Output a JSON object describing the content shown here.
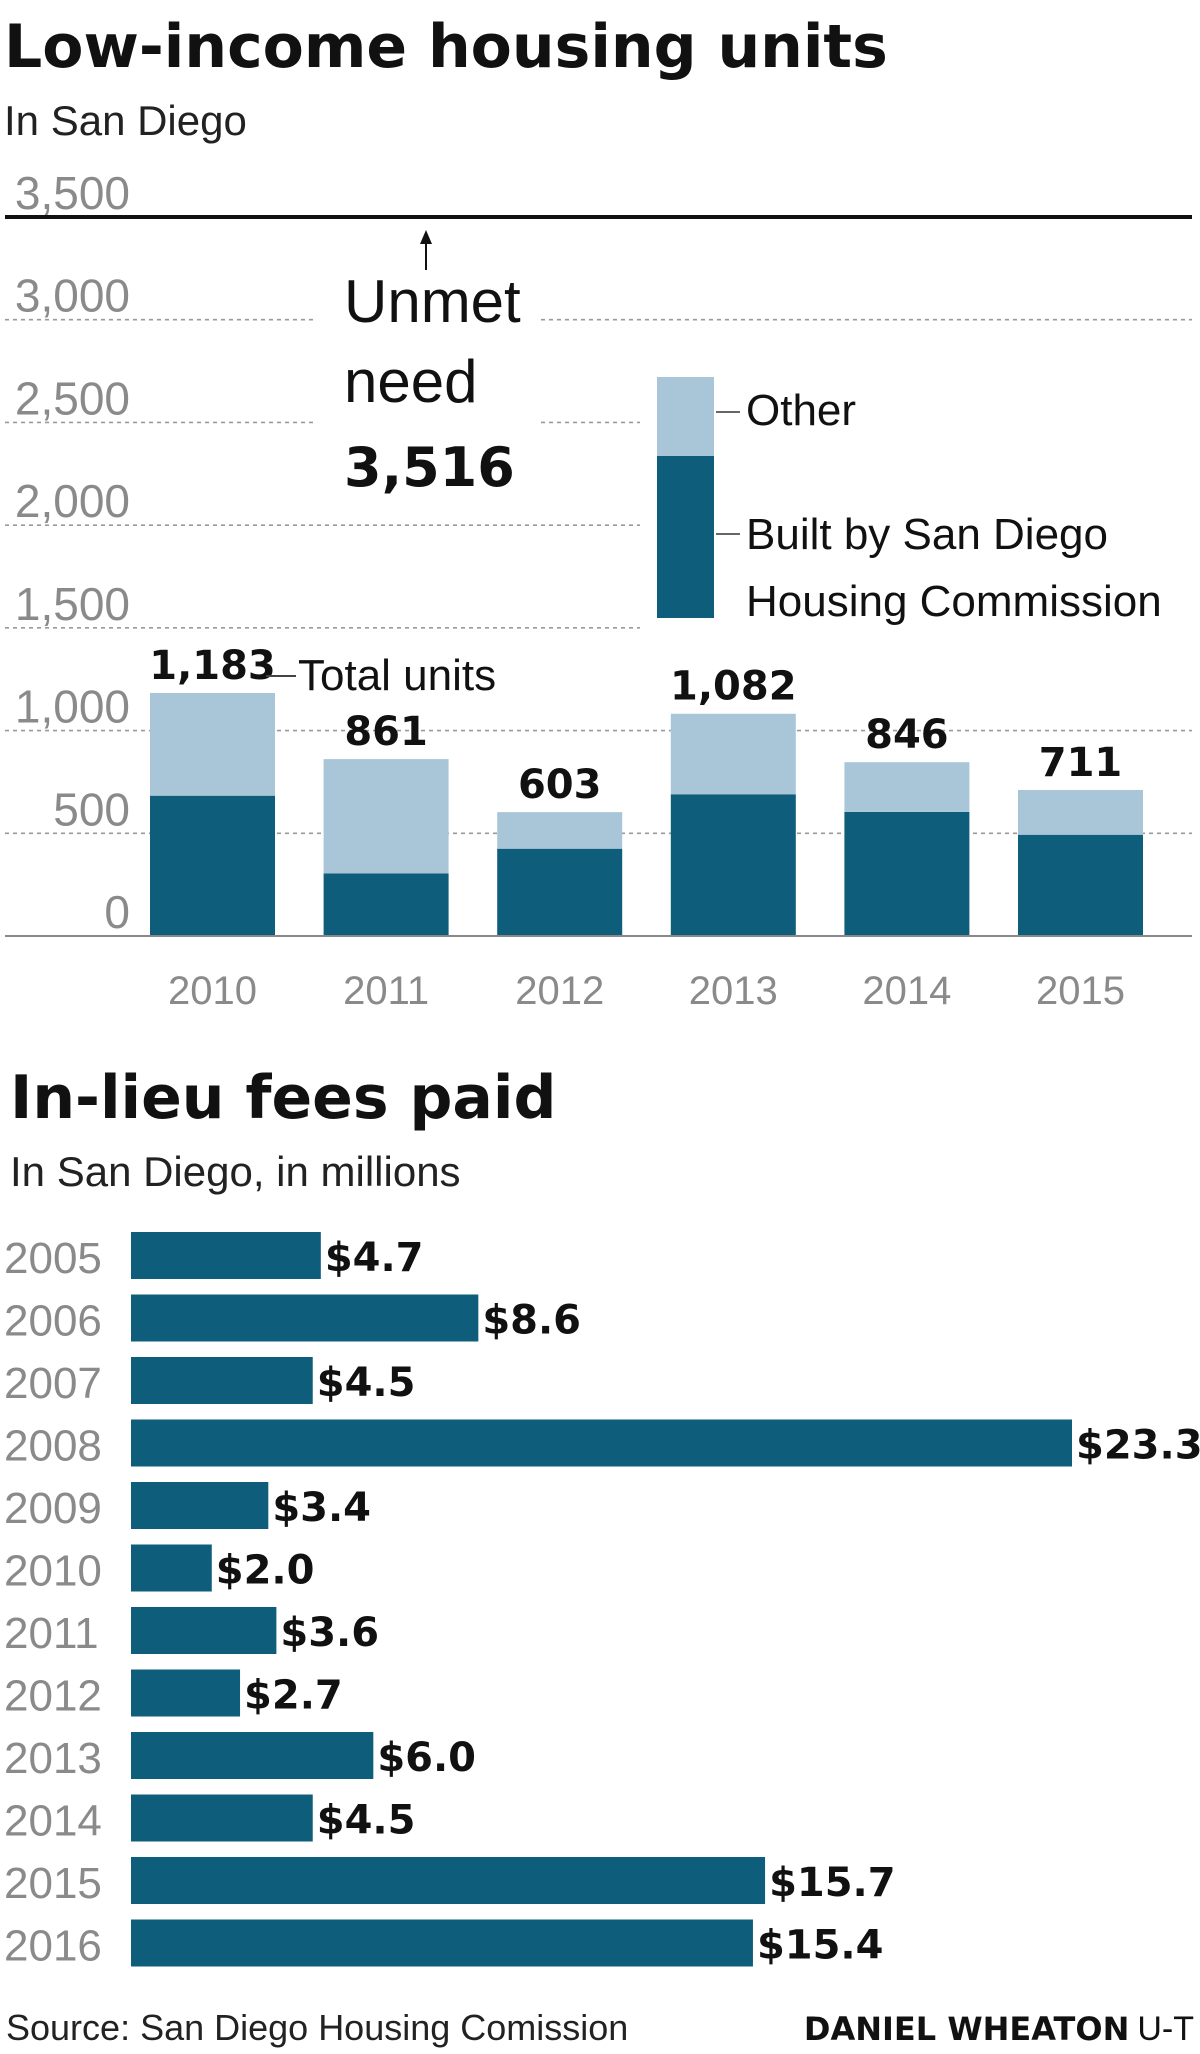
{
  "colors": {
    "dark": "#0e5e7b",
    "light": "#a9c6d8",
    "grid": "#9a9a9a",
    "axis": "#888888"
  },
  "footer": {
    "source": "Source: San Diego Housing Comission",
    "author": "DANIEL WHEATON",
    "outlet": "U-T"
  },
  "chart_data": [
    {
      "type": "bar",
      "stacked": true,
      "title": "Low-income housing units",
      "subtitle": "In San Diego",
      "categories": [
        "2010",
        "2011",
        "2012",
        "2013",
        "2014",
        "2015"
      ],
      "series": [
        {
          "name": "Built by San Diego Housing Commission",
          "color": "#0e5e7b",
          "values": [
            683,
            305,
            425,
            690,
            604,
            493
          ]
        },
        {
          "name": "Other",
          "color": "#a9c6d8",
          "values": [
            500,
            556,
            178,
            392,
            242,
            218
          ]
        }
      ],
      "totals": [
        1183,
        861,
        603,
        1082,
        846,
        711
      ],
      "total_labels": [
        "1,183",
        "861",
        "603",
        "1,082",
        "846",
        "711"
      ],
      "total_note": "Total units",
      "yticks": [
        "0",
        "500",
        "1,000",
        "1,500",
        "2,000",
        "2,500",
        "3,000",
        "3,500"
      ],
      "ylim": [
        0,
        3500
      ],
      "reference_line": {
        "value": 3516,
        "label_lines": [
          "Unmet",
          "need"
        ],
        "value_label": "3,516"
      },
      "legend_labels": [
        "Other",
        "Built by San Diego",
        "Housing Commission"
      ],
      "legend_position": "top-right",
      "grid": true
    },
    {
      "type": "bar",
      "orientation": "horizontal",
      "title": "In-lieu fees paid",
      "subtitle": "In San Diego, in millions",
      "categories": [
        "2005",
        "2006",
        "2007",
        "2008",
        "2009",
        "2010",
        "2011",
        "2012",
        "2013",
        "2014",
        "2015",
        "2016"
      ],
      "values": [
        4.7,
        8.6,
        4.5,
        23.3,
        3.4,
        2.0,
        3.6,
        2.7,
        6.0,
        4.5,
        15.7,
        15.4
      ],
      "value_labels": [
        "$4.7",
        "$8.6",
        "$4.5",
        "$23.3",
        "$3.4",
        "$2.0",
        "$3.6",
        "$2.7",
        "$6.0",
        "$4.5",
        "$15.7",
        "$15.4"
      ],
      "color": "#0e5e7b",
      "xlim": [
        0,
        23.3
      ]
    }
  ]
}
